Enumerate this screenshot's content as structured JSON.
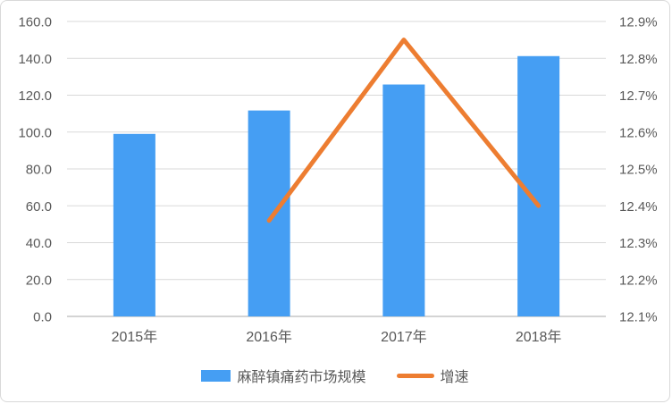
{
  "chart_data": {
    "type": "combo",
    "categories": [
      "2015年",
      "2016年",
      "2017年",
      "2018年"
    ],
    "series": [
      {
        "name": "麻醉镇痛药市场规模",
        "type": "bar",
        "axis": "left",
        "color": "#459ef3",
        "values": [
          99.0,
          111.7,
          125.8,
          141.2
        ]
      },
      {
        "name": "增速",
        "type": "line",
        "axis": "right",
        "color": "#ed7d31",
        "values": [
          null,
          12.36,
          12.85,
          12.4
        ]
      }
    ],
    "left_axis": {
      "min": 0,
      "max": 160,
      "step": 20,
      "tick_labels": [
        "0.0",
        "20.0",
        "40.0",
        "60.0",
        "80.0",
        "100.0",
        "120.0",
        "140.0",
        "160.0"
      ]
    },
    "right_axis": {
      "min": 12.1,
      "max": 12.9,
      "step": 0.1,
      "tick_labels": [
        "12.1%",
        "12.2%",
        "12.3%",
        "12.4%",
        "12.5%",
        "12.6%",
        "12.7%",
        "12.8%",
        "12.9%"
      ]
    },
    "grid": {
      "show": true,
      "color": "#d9d9d9",
      "axis_line_color": "#c6c6c6"
    },
    "legend": {
      "position": "bottom"
    },
    "title": "",
    "xlabel": "",
    "ylabel": ""
  }
}
